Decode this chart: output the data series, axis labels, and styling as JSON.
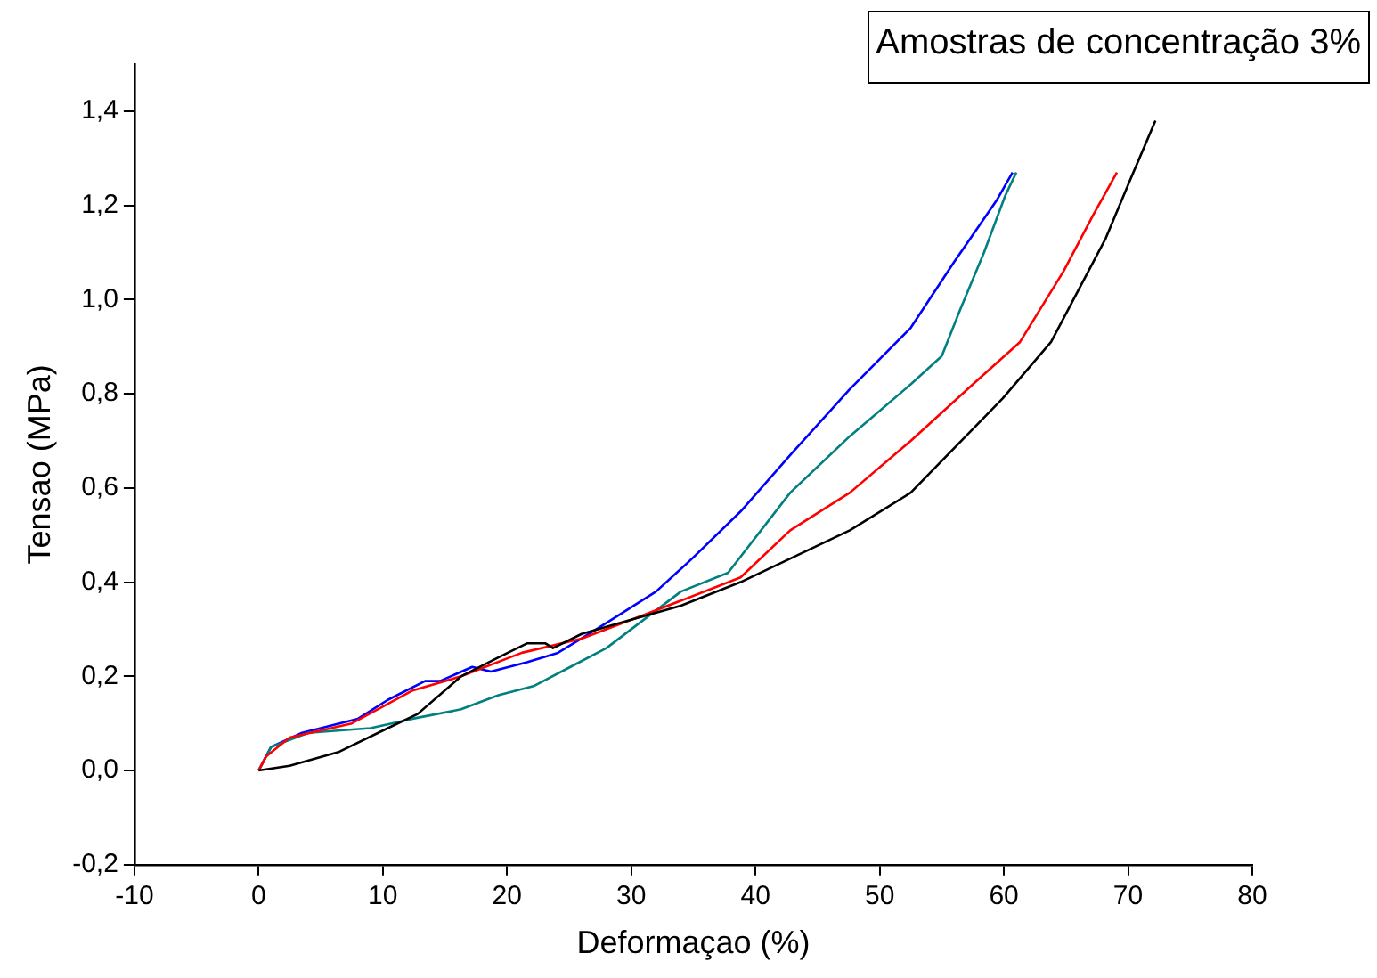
{
  "chart_data": {
    "type": "line",
    "xlabel": "Deformaçao (%)",
    "ylabel": "Tensao (MPa)",
    "annotations": [
      "Amostras de concentração 3%"
    ],
    "xlim": [
      -10,
      80
    ],
    "xticks": [
      -10,
      0,
      10,
      20,
      30,
      40,
      50,
      60,
      70,
      80
    ],
    "ylim": [
      -0.2,
      1.5
    ],
    "yticks": [
      {
        "value": -0.2,
        "label": "-0,2"
      },
      {
        "value": 0,
        "label": "0,0"
      },
      {
        "value": 0.2,
        "label": "0,2"
      },
      {
        "value": 0.4,
        "label": "0,4"
      },
      {
        "value": 0.6,
        "label": "0,6"
      },
      {
        "value": 0.8,
        "label": "0,8"
      },
      {
        "value": 1.0,
        "label": "1,0"
      },
      {
        "value": 1.2,
        "label": "1,2"
      },
      {
        "value": 1.4,
        "label": "1,4"
      }
    ],
    "grid": false,
    "legend": false,
    "marker": "none",
    "line_style": "solid",
    "series": [
      {
        "color": "#000000",
        "x": [
          0,
          2.5,
          6.5,
          10.4,
          12.8,
          16.3,
          19.3,
          21.6,
          23.1,
          23.7,
          26,
          30,
          34,
          38.8,
          47.6,
          52.5,
          59.9,
          63.8,
          68.2,
          70.1,
          72.2
        ],
        "values": [
          0,
          0.01,
          0.04,
          0.09,
          0.12,
          0.2,
          0.24,
          0.27,
          0.27,
          0.26,
          0.29,
          0.32,
          0.35,
          0.4,
          0.51,
          0.59,
          0.79,
          0.91,
          1.13,
          1.25,
          1.38
        ]
      },
      {
        "color": "#ff0000",
        "x": [
          0,
          0.6,
          2.5,
          7.5,
          12.4,
          16.3,
          21.2,
          26,
          31,
          38.8,
          42.8,
          47.6,
          52.5,
          57.5,
          61.3,
          64.8,
          67.2,
          69.1
        ],
        "values": [
          0,
          0.03,
          0.07,
          0.1,
          0.17,
          0.2,
          0.25,
          0.28,
          0.33,
          0.41,
          0.51,
          0.59,
          0.7,
          0.82,
          0.91,
          1.06,
          1.18,
          1.27
        ]
      },
      {
        "color": "#008080",
        "x": [
          0,
          1,
          4,
          9,
          12.4,
          16.3,
          19.3,
          22.2,
          25.1,
          28,
          31,
          34,
          37.8,
          42.8,
          47.6,
          52.5,
          55,
          56.5,
          58.4,
          60.1,
          61
        ],
        "values": [
          0,
          0.05,
          0.08,
          0.09,
          0.11,
          0.13,
          0.16,
          0.18,
          0.22,
          0.26,
          0.32,
          0.38,
          0.42,
          0.59,
          0.71,
          0.82,
          0.88,
          0.98,
          1.1,
          1.22,
          1.27
        ]
      },
      {
        "color": "#0000ff",
        "x": [
          0,
          1,
          3.5,
          8,
          10.4,
          13.4,
          14.6,
          17.2,
          18.7,
          21.6,
          24.1,
          26.6,
          29,
          32,
          34.9,
          38.8,
          42.8,
          47.6,
          52.5,
          56,
          59.4,
          60.7
        ],
        "values": [
          0,
          0.05,
          0.08,
          0.11,
          0.15,
          0.19,
          0.19,
          0.22,
          0.21,
          0.23,
          0.25,
          0.29,
          0.33,
          0.38,
          0.45,
          0.55,
          0.67,
          0.81,
          0.94,
          1.08,
          1.21,
          1.27
        ]
      }
    ]
  }
}
